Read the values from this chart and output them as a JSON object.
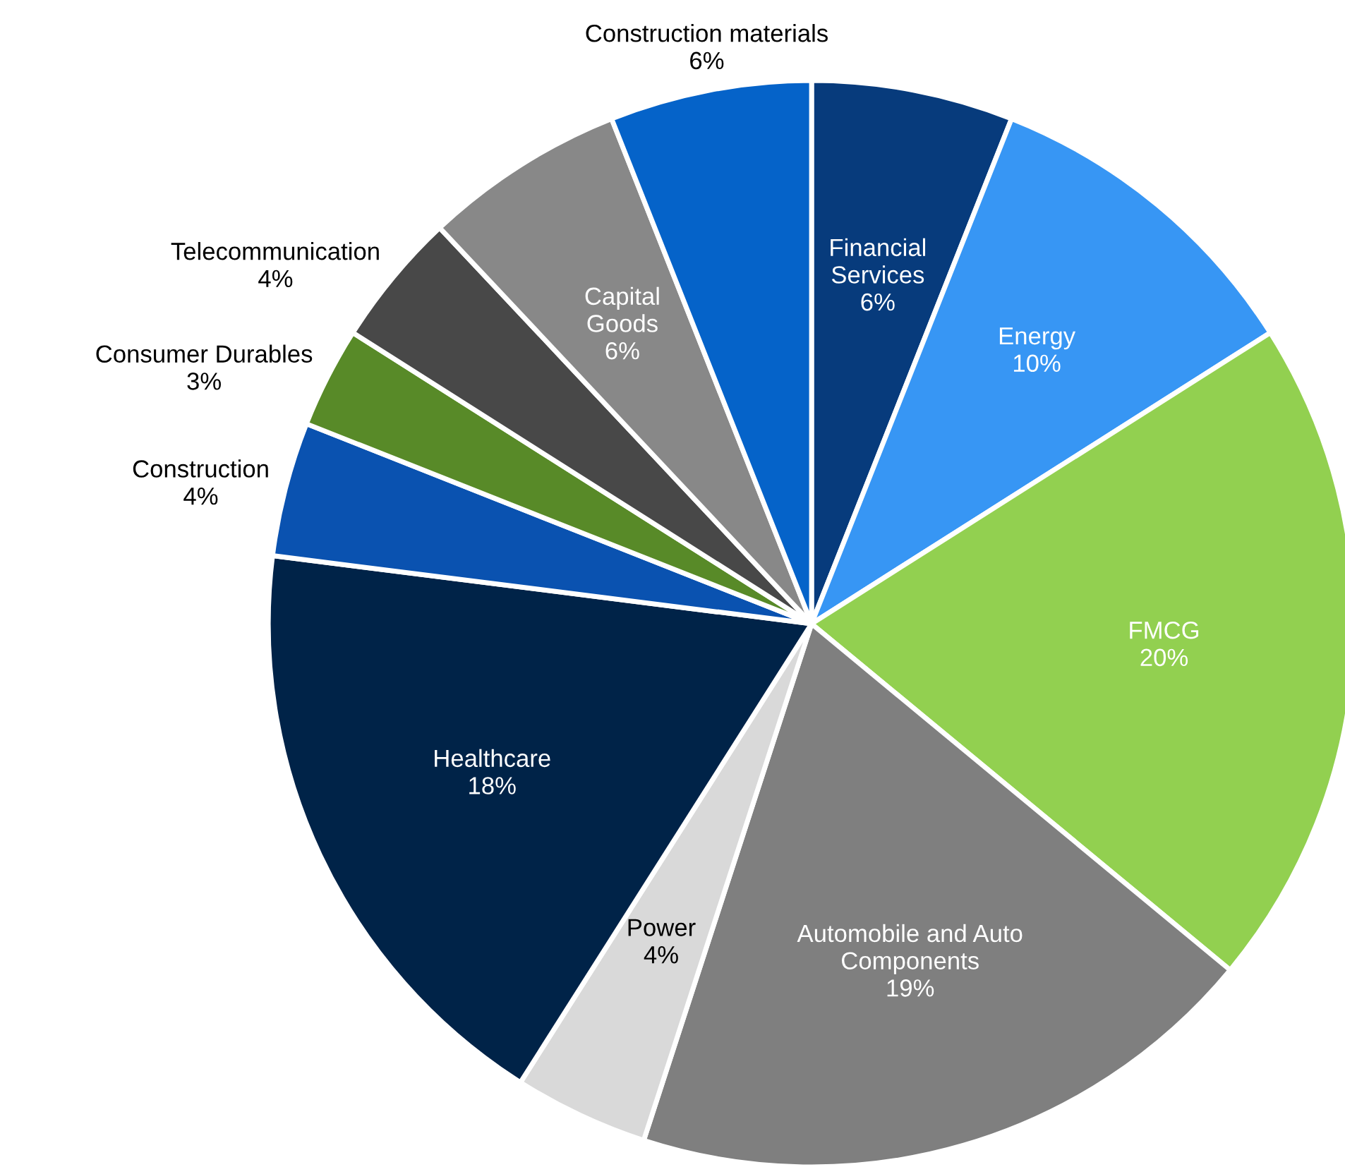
{
  "chart_data": {
    "type": "pie",
    "categories": [
      "Financial Services",
      "Energy",
      "FMCG",
      "Automobile and Auto Components",
      "Power",
      "Healthcare",
      "Construction",
      "Consumer Durables",
      "Telecommunication",
      "Capital Goods",
      "Construction materials"
    ],
    "values": [
      6,
      10,
      20,
      19,
      4,
      18,
      4,
      3,
      4,
      6,
      6
    ],
    "value_labels": [
      "6%",
      "10%",
      "20%",
      "19%",
      "4%",
      "18%",
      "4%",
      "3%",
      "4%",
      "6%",
      "6%"
    ],
    "colors": [
      "#073b7c",
      "#3796f4",
      "#92d050",
      "#7f7f7f",
      "#d9d9d9",
      "#002348",
      "#0a52b0",
      "#588a28",
      "#484848",
      "#888888",
      "#0563c9"
    ]
  }
}
